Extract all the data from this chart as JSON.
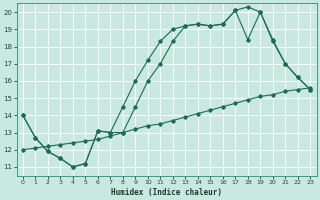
{
  "xlabel": "Humidex (Indice chaleur)",
  "background_color": "#c8e8e0",
  "grid_color": "#ffffff",
  "line_color": "#1a6b5a",
  "xlim": [
    -0.5,
    23.5
  ],
  "ylim": [
    10.5,
    20.5
  ],
  "xticks": [
    0,
    1,
    2,
    3,
    4,
    5,
    6,
    7,
    8,
    9,
    10,
    11,
    12,
    13,
    14,
    15,
    16,
    17,
    18,
    19,
    20,
    21,
    22,
    23
  ],
  "yticks": [
    11,
    12,
    13,
    14,
    15,
    16,
    17,
    18,
    19,
    20
  ],
  "line1_x": [
    0,
    1,
    2,
    3,
    4,
    5,
    6,
    7,
    8,
    9,
    10,
    11,
    12,
    13,
    14,
    15,
    16,
    17,
    18,
    19,
    20,
    21,
    22,
    23
  ],
  "line1_y": [
    14.0,
    12.7,
    11.9,
    11.5,
    11.0,
    11.2,
    13.1,
    13.0,
    13.0,
    14.5,
    16.0,
    17.0,
    18.3,
    19.2,
    19.3,
    19.2,
    19.3,
    20.1,
    20.3,
    20.0,
    18.4,
    17.0,
    16.2,
    15.5
  ],
  "line2_x": [
    0,
    1,
    2,
    3,
    4,
    5,
    6,
    7,
    8,
    9,
    10,
    11,
    12,
    13,
    14,
    15,
    16,
    17,
    18,
    19,
    20,
    21,
    22,
    23
  ],
  "line2_y": [
    12.0,
    12.1,
    12.2,
    12.3,
    12.4,
    12.5,
    12.6,
    12.8,
    13.0,
    13.2,
    13.4,
    13.5,
    13.7,
    13.9,
    14.1,
    14.3,
    14.5,
    14.7,
    14.9,
    15.1,
    15.2,
    15.4,
    15.5,
    15.6
  ],
  "line3_x": [
    0,
    1,
    2,
    3,
    4,
    5,
    6,
    7,
    8,
    9,
    10,
    11,
    12,
    13,
    14,
    15,
    16,
    17,
    18,
    19,
    20,
    21,
    22,
    23
  ],
  "line3_y": [
    14.0,
    12.7,
    11.9,
    11.5,
    11.0,
    11.2,
    13.1,
    13.0,
    14.5,
    16.0,
    17.2,
    18.3,
    19.0,
    19.2,
    19.3,
    19.2,
    19.3,
    20.1,
    18.4,
    20.0,
    18.3,
    17.0,
    16.2,
    15.5
  ]
}
